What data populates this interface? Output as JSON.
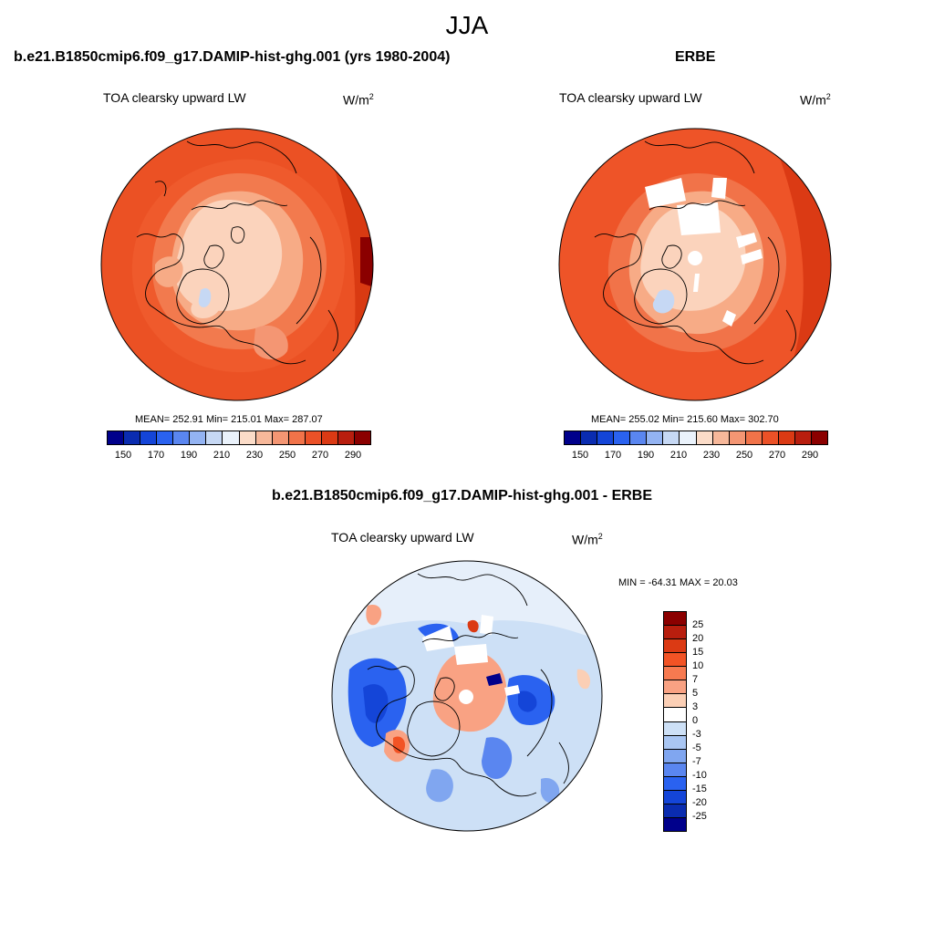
{
  "main_title": "JJA",
  "panels": [
    {
      "title": "b.e21.B1850cmip6.f09_g17.DAMIP-hist-ghg.001 (yrs 1980-2004)",
      "variable": "TOA clearsky upward LW",
      "units_base": "W/m",
      "units_exp": "2",
      "stats": "MEAN= 252.91  Min= 215.01  Max= 287.07"
    },
    {
      "title": "ERBE",
      "variable": "TOA clearsky upward LW",
      "units_base": "W/m",
      "units_exp": "2",
      "stats": "MEAN= 255.02  Min= 215.60  Max= 302.70"
    },
    {
      "title": "b.e21.B1850cmip6.f09_g17.DAMIP-hist-ghg.001 - ERBE",
      "variable": "TOA clearsky upward LW",
      "units_base": "W/m",
      "units_exp": "2",
      "stats": "MIN = -64.31 MAX =  20.03"
    }
  ],
  "colorbar_abs": {
    "colors": [
      "#00008b",
      "#0a2cb0",
      "#1445d8",
      "#2a62f0",
      "#5a86f0",
      "#93b3f2",
      "#c6d8f4",
      "#eaf2fb",
      "#fbdcc8",
      "#f7b89a",
      "#f49673",
      "#f17349",
      "#eb5127",
      "#db3a14",
      "#b81e0e",
      "#8b0000"
    ],
    "ticks": [
      "150",
      "170",
      "190",
      "210",
      "230",
      "250",
      "270",
      "290"
    ]
  },
  "colorbar_diff": {
    "colors": [
      "#8b0000",
      "#b81e0e",
      "#db3a14",
      "#f25325",
      "#f77a50",
      "#f9a283",
      "#fbcfb5",
      "#ffffff",
      "#cde0f6",
      "#a9c6f3",
      "#80a6f0",
      "#5a86f0",
      "#2a62f0",
      "#1445d8",
      "#0a2cb0",
      "#00008b"
    ],
    "ticks": [
      "25",
      "20",
      "15",
      "10",
      "7",
      "5",
      "3",
      "0",
      "-3",
      "-5",
      "-7",
      "-10",
      "-15",
      "-20",
      "-25"
    ]
  }
}
